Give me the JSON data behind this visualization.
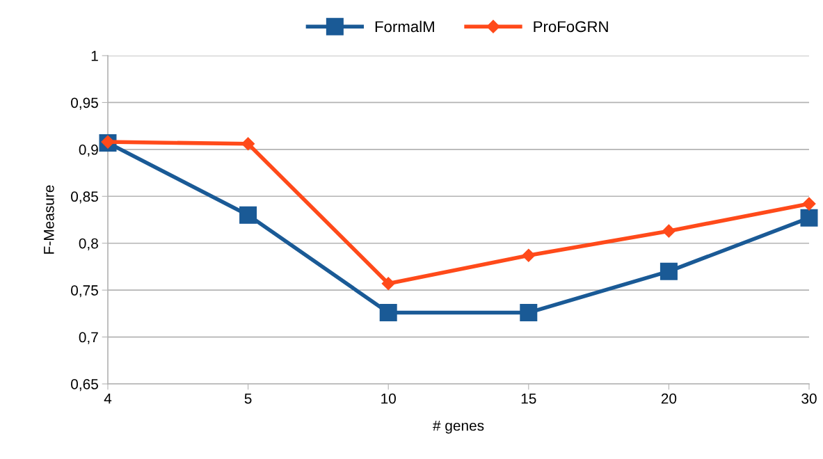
{
  "chart_data": {
    "type": "line",
    "xlabel": "# genes",
    "ylabel": "F-Measure",
    "categories": [
      "4",
      "5",
      "10",
      "15",
      "20",
      "30"
    ],
    "series": [
      {
        "name": "FormalM",
        "color": "#1a5a96",
        "marker": "square",
        "values": [
          0.907,
          0.83,
          0.726,
          0.726,
          0.77,
          0.827
        ]
      },
      {
        "name": "ProFoGRN",
        "color": "#ff4a1a",
        "marker": "diamond",
        "values": [
          0.908,
          0.906,
          0.757,
          0.787,
          0.813,
          0.842
        ]
      }
    ],
    "ylim": [
      0.65,
      1
    ],
    "yticks": [
      {
        "value": 0.65,
        "label": "0,65"
      },
      {
        "value": 0.7,
        "label": "0,7"
      },
      {
        "value": 0.75,
        "label": "0,75"
      },
      {
        "value": 0.8,
        "label": "0,8"
      },
      {
        "value": 0.85,
        "label": "0,85"
      },
      {
        "value": 0.9,
        "label": "0,9"
      },
      {
        "value": 0.95,
        "label": "0,95"
      },
      {
        "value": 1,
        "label": "1"
      }
    ],
    "grid": "y",
    "legend": "top",
    "line_style": "solid"
  }
}
